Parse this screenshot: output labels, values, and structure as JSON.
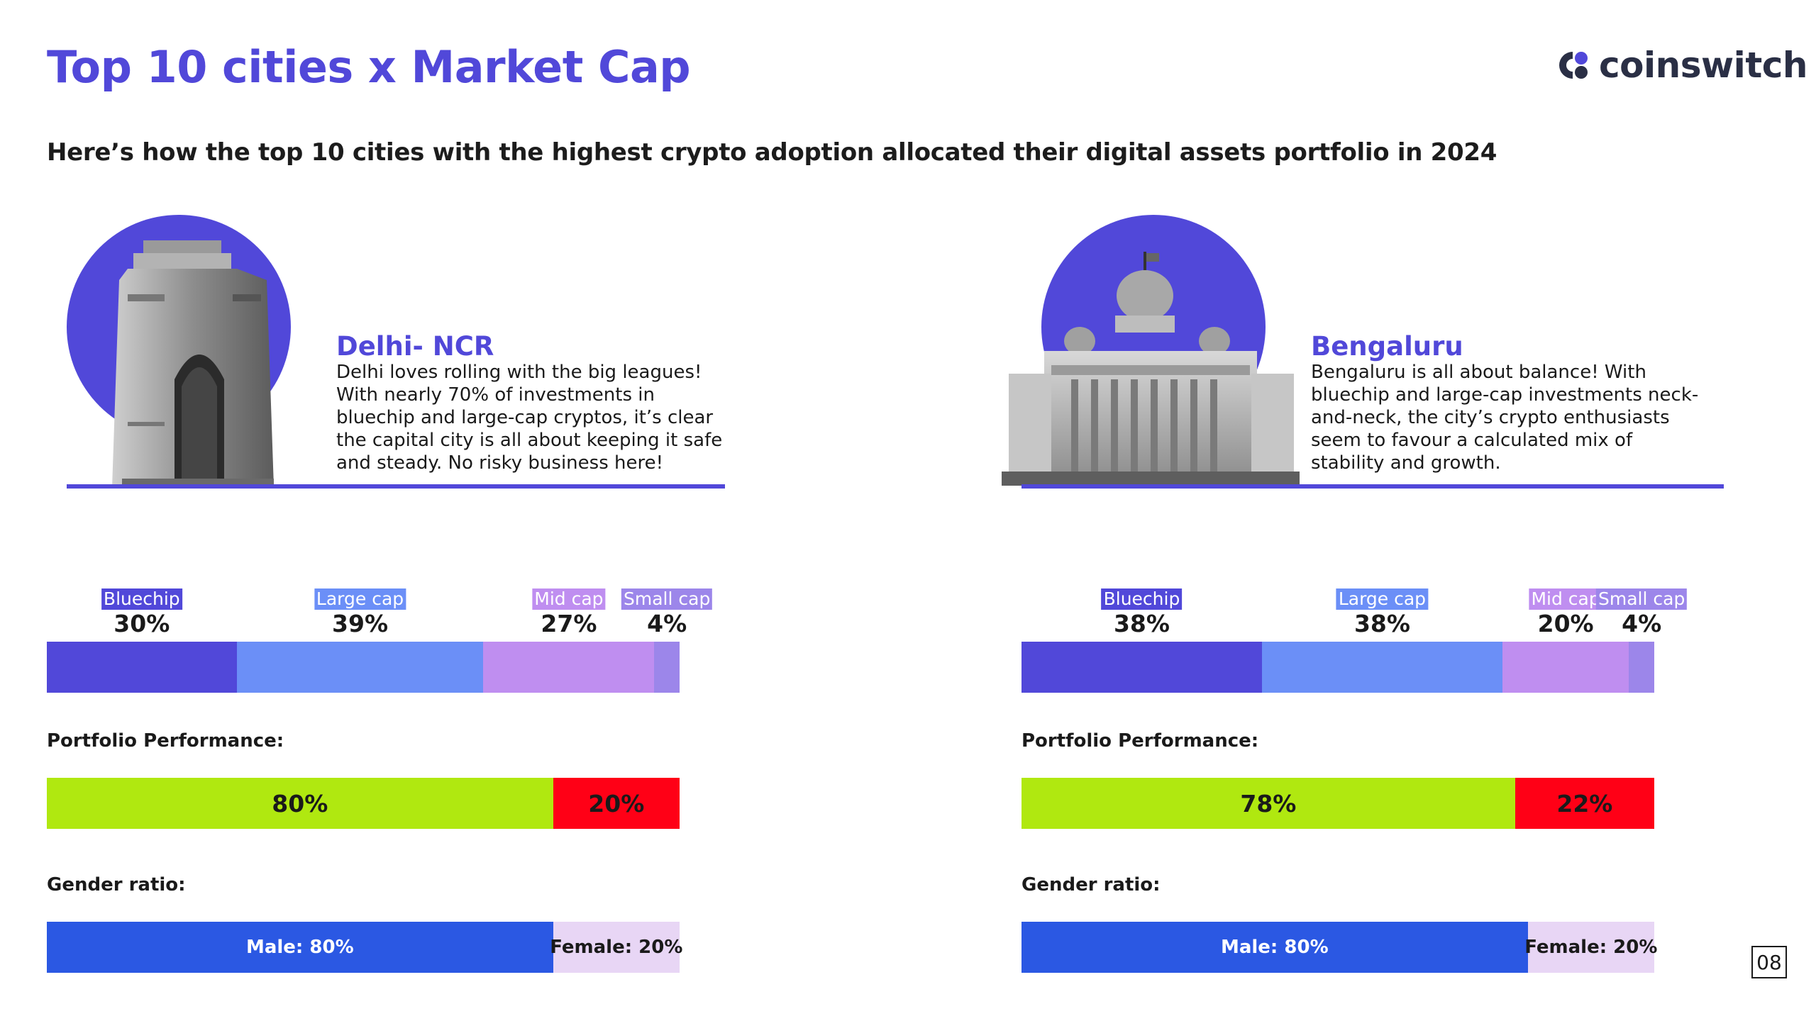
{
  "header": {
    "title": "Top 10 cities x Market Cap",
    "subtitle": "Here’s how the top 10 cities with the highest crypto adoption allocated their digital assets portfolio in 2024"
  },
  "logo": {
    "text": "coinswitch",
    "icon": "coinswitch-logo-icon"
  },
  "labels": {
    "portfolio_performance": "Portfolio Performance:",
    "gender_ratio": "Gender ratio:"
  },
  "colors": {
    "accent": "#5148d9",
    "bluechip": "#5148d9",
    "large_cap": "#6b8ff7",
    "mid_cap": "#bf8ef0",
    "small_cap": "#9c86ea",
    "profit": "#b0e810",
    "loss": "#ff0016",
    "male": "#2b58e3",
    "female": "#e8d6f5"
  },
  "page_number": "08",
  "chart_data": [
    {
      "type": "bar",
      "stacked": true,
      "orientation": "horizontal",
      "title": "Delhi- NCR",
      "description": "Delhi loves rolling with the big leagues! With nearly 70% of investments in bluechip and large-cap cryptos, it’s clear the capital city is all about keeping it safe and steady. No risky business here!",
      "landmark_icon": "india-gate-icon",
      "series": [
        {
          "name": "Bluechip",
          "value": 30,
          "label": "30%"
        },
        {
          "name": "Large cap",
          "value": 39,
          "label": "39%"
        },
        {
          "name": "Mid cap",
          "value": 27,
          "label": "27%"
        },
        {
          "name": "Small cap",
          "value": 4,
          "label": "4%"
        }
      ],
      "portfolio_performance": [
        {
          "value": 80,
          "label": "80%"
        },
        {
          "value": 20,
          "label": "20%"
        }
      ],
      "gender_ratio": [
        {
          "value": 80,
          "label": "Male: 80%"
        },
        {
          "value": 20,
          "label": "Female: 20%"
        }
      ]
    },
    {
      "type": "bar",
      "stacked": true,
      "orientation": "horizontal",
      "title": "Bengaluru",
      "description": "Bengaluru is all about balance! With bluechip and large-cap investments neck-and-neck, the city’s crypto enthusiasts seem to favour a calculated mix of stability and growth.",
      "landmark_icon": "vidhana-soudha-icon",
      "series": [
        {
          "name": "Bluechip",
          "value": 38,
          "label": "38%"
        },
        {
          "name": "Large cap",
          "value": 38,
          "label": "38%"
        },
        {
          "name": "Mid cap",
          "value": 20,
          "label": "20%"
        },
        {
          "name": "Small cap",
          "value": 4,
          "label": "4%"
        }
      ],
      "portfolio_performance": [
        {
          "value": 78,
          "label": "78%"
        },
        {
          "value": 22,
          "label": "22%"
        }
      ],
      "gender_ratio": [
        {
          "value": 80,
          "label": "Male: 80%"
        },
        {
          "value": 20,
          "label": "Female: 20%"
        }
      ]
    }
  ]
}
